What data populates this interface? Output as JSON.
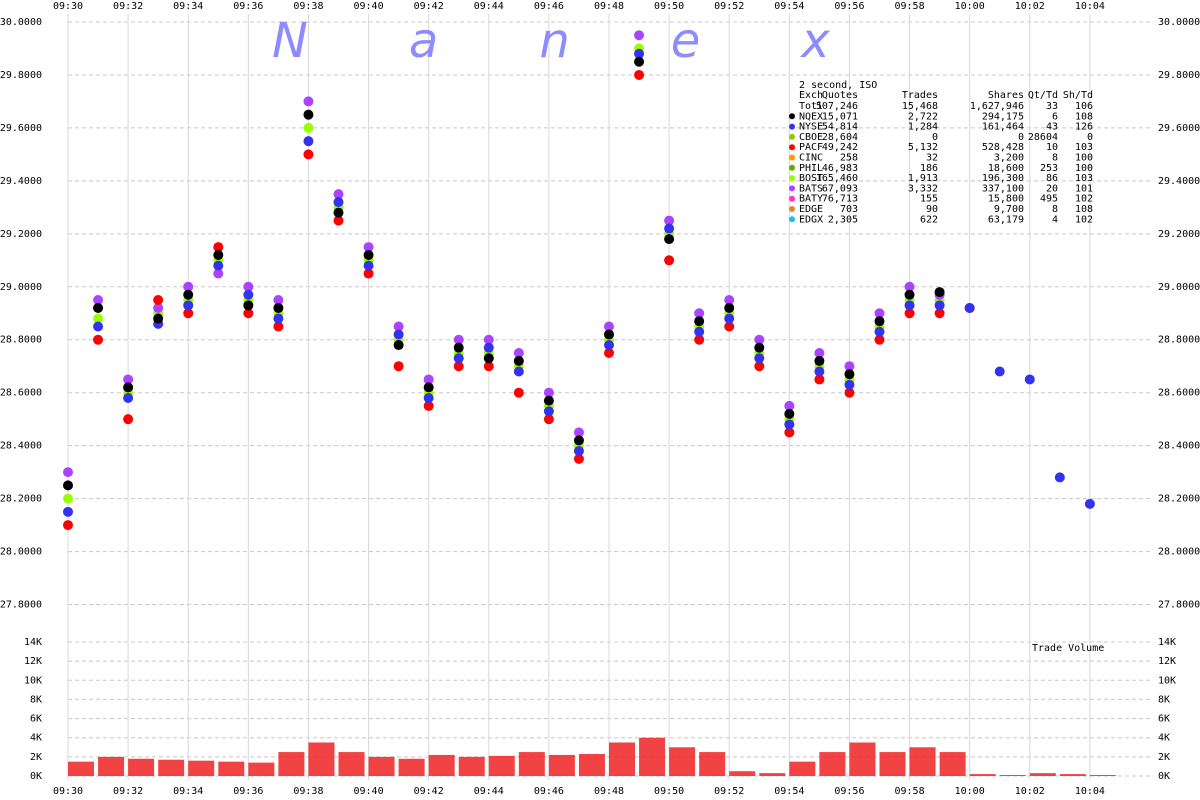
{
  "chart_data": [
    {
      "type": "scatter",
      "watermark": "Nanex",
      "x": [
        "09:30",
        "09:31",
        "09:32",
        "09:33",
        "09:34",
        "09:35",
        "09:36",
        "09:37",
        "09:38",
        "09:39",
        "09:40",
        "09:41",
        "09:42",
        "09:43",
        "09:44",
        "09:45",
        "09:46",
        "09:47",
        "09:48",
        "09:49",
        "09:50",
        "09:51",
        "09:52",
        "09:53",
        "09:54",
        "09:55",
        "09:56",
        "09:57",
        "09:58",
        "09:59",
        "10:00",
        "10:01",
        "10:02",
        "10:03",
        "10:04"
      ],
      "xlim": [
        "09:30",
        "10:06"
      ],
      "xticks": [
        "09:30",
        "09:32",
        "09:34",
        "09:36",
        "09:38",
        "09:40",
        "09:42",
        "09:44",
        "09:46",
        "09:48",
        "09:50",
        "09:52",
        "09:54",
        "09:56",
        "09:58",
        "10:00",
        "10:02",
        "10:04"
      ],
      "ylim": [
        27.7,
        30.0
      ],
      "yticks": [
        {
          "value": 27.8,
          "label": "27.8000"
        },
        {
          "value": 28.0,
          "label": "28.0000"
        },
        {
          "value": 28.2,
          "label": "28.2000"
        },
        {
          "value": 28.4,
          "label": "28.4000"
        },
        {
          "value": 28.6,
          "label": "28.6000"
        },
        {
          "value": 28.8,
          "label": "28.8000"
        },
        {
          "value": 29.0,
          "label": "29.0000"
        },
        {
          "value": 29.2,
          "label": "29.2000"
        },
        {
          "value": 29.4,
          "label": "29.4000"
        },
        {
          "value": 29.6,
          "label": "29.6000"
        },
        {
          "value": 29.8,
          "label": "29.8000"
        },
        {
          "value": 30.0,
          "label": "30.0000"
        }
      ],
      "grid": true,
      "series": [
        {
          "name": "BOST",
          "color": "#99ff00",
          "values": [
            28.2,
            28.88,
            28.6,
            28.9,
            28.95,
            29.1,
            28.95,
            28.9,
            29.6,
            29.3,
            29.1,
            28.8,
            28.6,
            28.75,
            28.75,
            28.7,
            28.55,
            28.4,
            28.8,
            29.9,
            29.2,
            28.85,
            28.9,
            28.75,
            28.5,
            28.7,
            28.65,
            28.85,
            28.95,
            28.95,
            null,
            null,
            null,
            null,
            null
          ]
        },
        {
          "name": "BATS",
          "color": "#aa44ff",
          "values": [
            28.3,
            28.95,
            28.65,
            28.92,
            29.0,
            29.05,
            29.0,
            28.95,
            29.7,
            29.35,
            29.15,
            28.85,
            28.65,
            28.8,
            28.8,
            28.75,
            28.6,
            28.45,
            28.85,
            29.95,
            29.25,
            28.9,
            28.95,
            28.8,
            28.55,
            28.75,
            28.7,
            28.9,
            29.0,
            28.97,
            null,
            null,
            null,
            null,
            null
          ]
        },
        {
          "name": "PACF",
          "color": "#ff0000",
          "values": [
            28.1,
            28.8,
            28.5,
            28.95,
            28.9,
            29.15,
            28.9,
            28.85,
            29.5,
            29.25,
            29.05,
            28.7,
            28.55,
            28.7,
            28.7,
            28.6,
            28.5,
            28.35,
            28.75,
            29.8,
            29.1,
            28.8,
            28.85,
            28.7,
            28.45,
            28.65,
            28.6,
            28.8,
            28.9,
            28.9,
            28.92,
            null,
            null,
            null,
            null
          ]
        },
        {
          "name": "NYSE",
          "color": "#3333ee",
          "values": [
            28.15,
            28.85,
            28.58,
            28.86,
            28.93,
            29.08,
            28.97,
            28.88,
            29.55,
            29.32,
            29.08,
            28.82,
            28.58,
            28.73,
            28.77,
            28.68,
            28.53,
            28.38,
            28.78,
            29.88,
            29.22,
            28.83,
            28.88,
            28.73,
            28.48,
            28.68,
            28.63,
            28.83,
            28.93,
            28.93,
            28.92,
            28.68,
            28.65,
            28.28,
            28.18
          ]
        },
        {
          "name": "NQEX",
          "color": "#000000",
          "values": [
            28.25,
            28.92,
            28.62,
            28.88,
            28.97,
            29.12,
            28.93,
            28.92,
            29.65,
            29.28,
            29.12,
            28.78,
            28.62,
            28.77,
            28.73,
            28.72,
            28.57,
            28.42,
            28.82,
            29.85,
            29.18,
            28.87,
            28.92,
            28.77,
            28.52,
            28.72,
            28.67,
            28.87,
            28.97,
            28.98,
            null,
            null,
            null,
            null,
            null
          ]
        }
      ],
      "stats": {
        "caption": "2 second, ISO",
        "columns": [
          "Exch",
          "Quotes",
          "Trades",
          "Shares",
          "Qt/Td",
          "Sh/Td"
        ],
        "rows": [
          [
            "Totl",
            "507,246",
            "15,468",
            "1,627,946",
            "33",
            "106"
          ],
          [
            "NQEX",
            "15,071",
            "2,722",
            "294,175",
            "6",
            "108"
          ],
          [
            "NYSE",
            "54,814",
            "1,284",
            "161,464",
            "43",
            "126"
          ],
          [
            "CBOE",
            "28,604",
            "0",
            "0",
            "28604",
            "0"
          ],
          [
            "PACF",
            "49,242",
            "5,132",
            "528,428",
            "10",
            "103"
          ],
          [
            "CINC",
            "258",
            "32",
            "3,200",
            "8",
            "100"
          ],
          [
            "PHIL",
            "46,983",
            "186",
            "18,600",
            "253",
            "100"
          ],
          [
            "BOST",
            "165,460",
            "1,913",
            "196,300",
            "86",
            "103"
          ],
          [
            "BATS",
            "67,093",
            "3,332",
            "337,100",
            "20",
            "101"
          ],
          [
            "BATY",
            "76,713",
            "155",
            "15,800",
            "495",
            "102"
          ],
          [
            "EDGE",
            "703",
            "90",
            "9,700",
            "8",
            "108"
          ],
          [
            "EDGX",
            "2,305",
            "622",
            "63,179",
            "4",
            "102"
          ]
        ],
        "marker_colors": [
          null,
          "#000000",
          "#3333ee",
          "#88cc00",
          "#ff0000",
          "#ff9900",
          "#66aa00",
          "#99ff00",
          "#aa44ff",
          "#ff33cc",
          "#dd8833",
          "#22bbee"
        ]
      }
    },
    {
      "type": "bar",
      "title": "Trade Volume",
      "x": [
        "09:30",
        "09:31",
        "09:32",
        "09:33",
        "09:34",
        "09:35",
        "09:36",
        "09:37",
        "09:38",
        "09:39",
        "09:40",
        "09:41",
        "09:42",
        "09:43",
        "09:44",
        "09:45",
        "09:46",
        "09:47",
        "09:48",
        "09:49",
        "09:50",
        "09:51",
        "09:52",
        "09:53",
        "09:54",
        "09:55",
        "09:56",
        "09:57",
        "09:58",
        "09:59",
        "10:00",
        "10:01",
        "10:02",
        "10:03",
        "10:04"
      ],
      "values": [
        1500,
        2000,
        1800,
        1700,
        1600,
        1500,
        1400,
        2500,
        3500,
        2500,
        2000,
        1800,
        2200,
        2000,
        2100,
        2500,
        2200,
        2300,
        3500,
        4000,
        3000,
        2500,
        500,
        300,
        1500,
        2500,
        3500,
        2500,
        3000,
        2500,
        200,
        100,
        300,
        200,
        100
      ],
      "color": "#ee2222",
      "ylim": [
        0,
        14000
      ],
      "yticks": [
        {
          "value": 0,
          "label": "0K"
        },
        {
          "value": 2000,
          "label": "2K"
        },
        {
          "value": 4000,
          "label": "4K"
        },
        {
          "value": 6000,
          "label": "6K"
        },
        {
          "value": 8000,
          "label": "8K"
        },
        {
          "value": 10000,
          "label": "10K"
        },
        {
          "value": 12000,
          "label": "12K"
        },
        {
          "value": 14000,
          "label": "14K"
        }
      ],
      "grid": true
    }
  ]
}
